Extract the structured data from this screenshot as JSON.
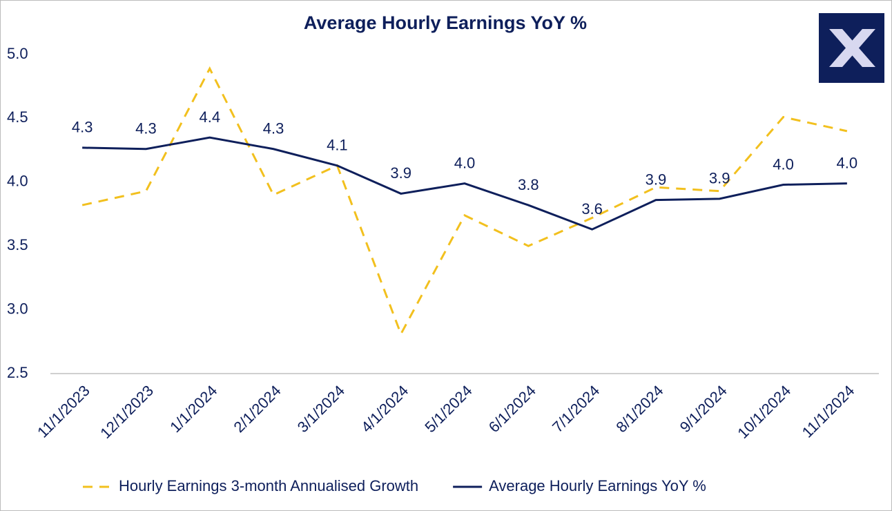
{
  "chart_data": {
    "type": "line",
    "title": "Average Hourly Earnings YoY %",
    "categories": [
      "11/1/2023",
      "12/1/2023",
      "1/1/2024",
      "2/1/2024",
      "3/1/2024",
      "4/1/2024",
      "5/1/2024",
      "6/1/2024",
      "7/1/2024",
      "8/1/2024",
      "9/1/2024",
      "10/1/2024",
      "11/1/2024"
    ],
    "series": [
      {
        "name": "Hourly Earnings 3-month Annualised Growth",
        "color": "#f2c01e",
        "dash": true,
        "values": [
          3.82,
          3.93,
          4.89,
          3.9,
          4.13,
          2.81,
          3.74,
          3.5,
          3.72,
          3.96,
          3.93,
          4.51,
          4.4
        ]
      },
      {
        "name": "Average Hourly Earnings YoY %",
        "color": "#0e1f5b",
        "dash": false,
        "values": [
          4.27,
          4.26,
          4.35,
          4.26,
          4.13,
          3.91,
          3.99,
          3.82,
          3.63,
          3.86,
          3.87,
          3.98,
          3.99
        ],
        "value_labels": [
          "4.3",
          "4.3",
          "4.4",
          "4.3",
          "4.1",
          "3.9",
          "4.0",
          "3.8",
          "3.6",
          "3.9",
          "3.9",
          "4.0",
          "4.0"
        ]
      }
    ],
    "ylim": [
      2.5,
      5.0
    ],
    "yticks": [
      2.5,
      {
        "value": 3,
        "label": "3.0"
      },
      3.5,
      {
        "value": 4,
        "label": "4.0"
      },
      4.5,
      {
        "value": 5,
        "label": "5.0"
      }
    ],
    "grid": false,
    "legend": "bottom"
  }
}
